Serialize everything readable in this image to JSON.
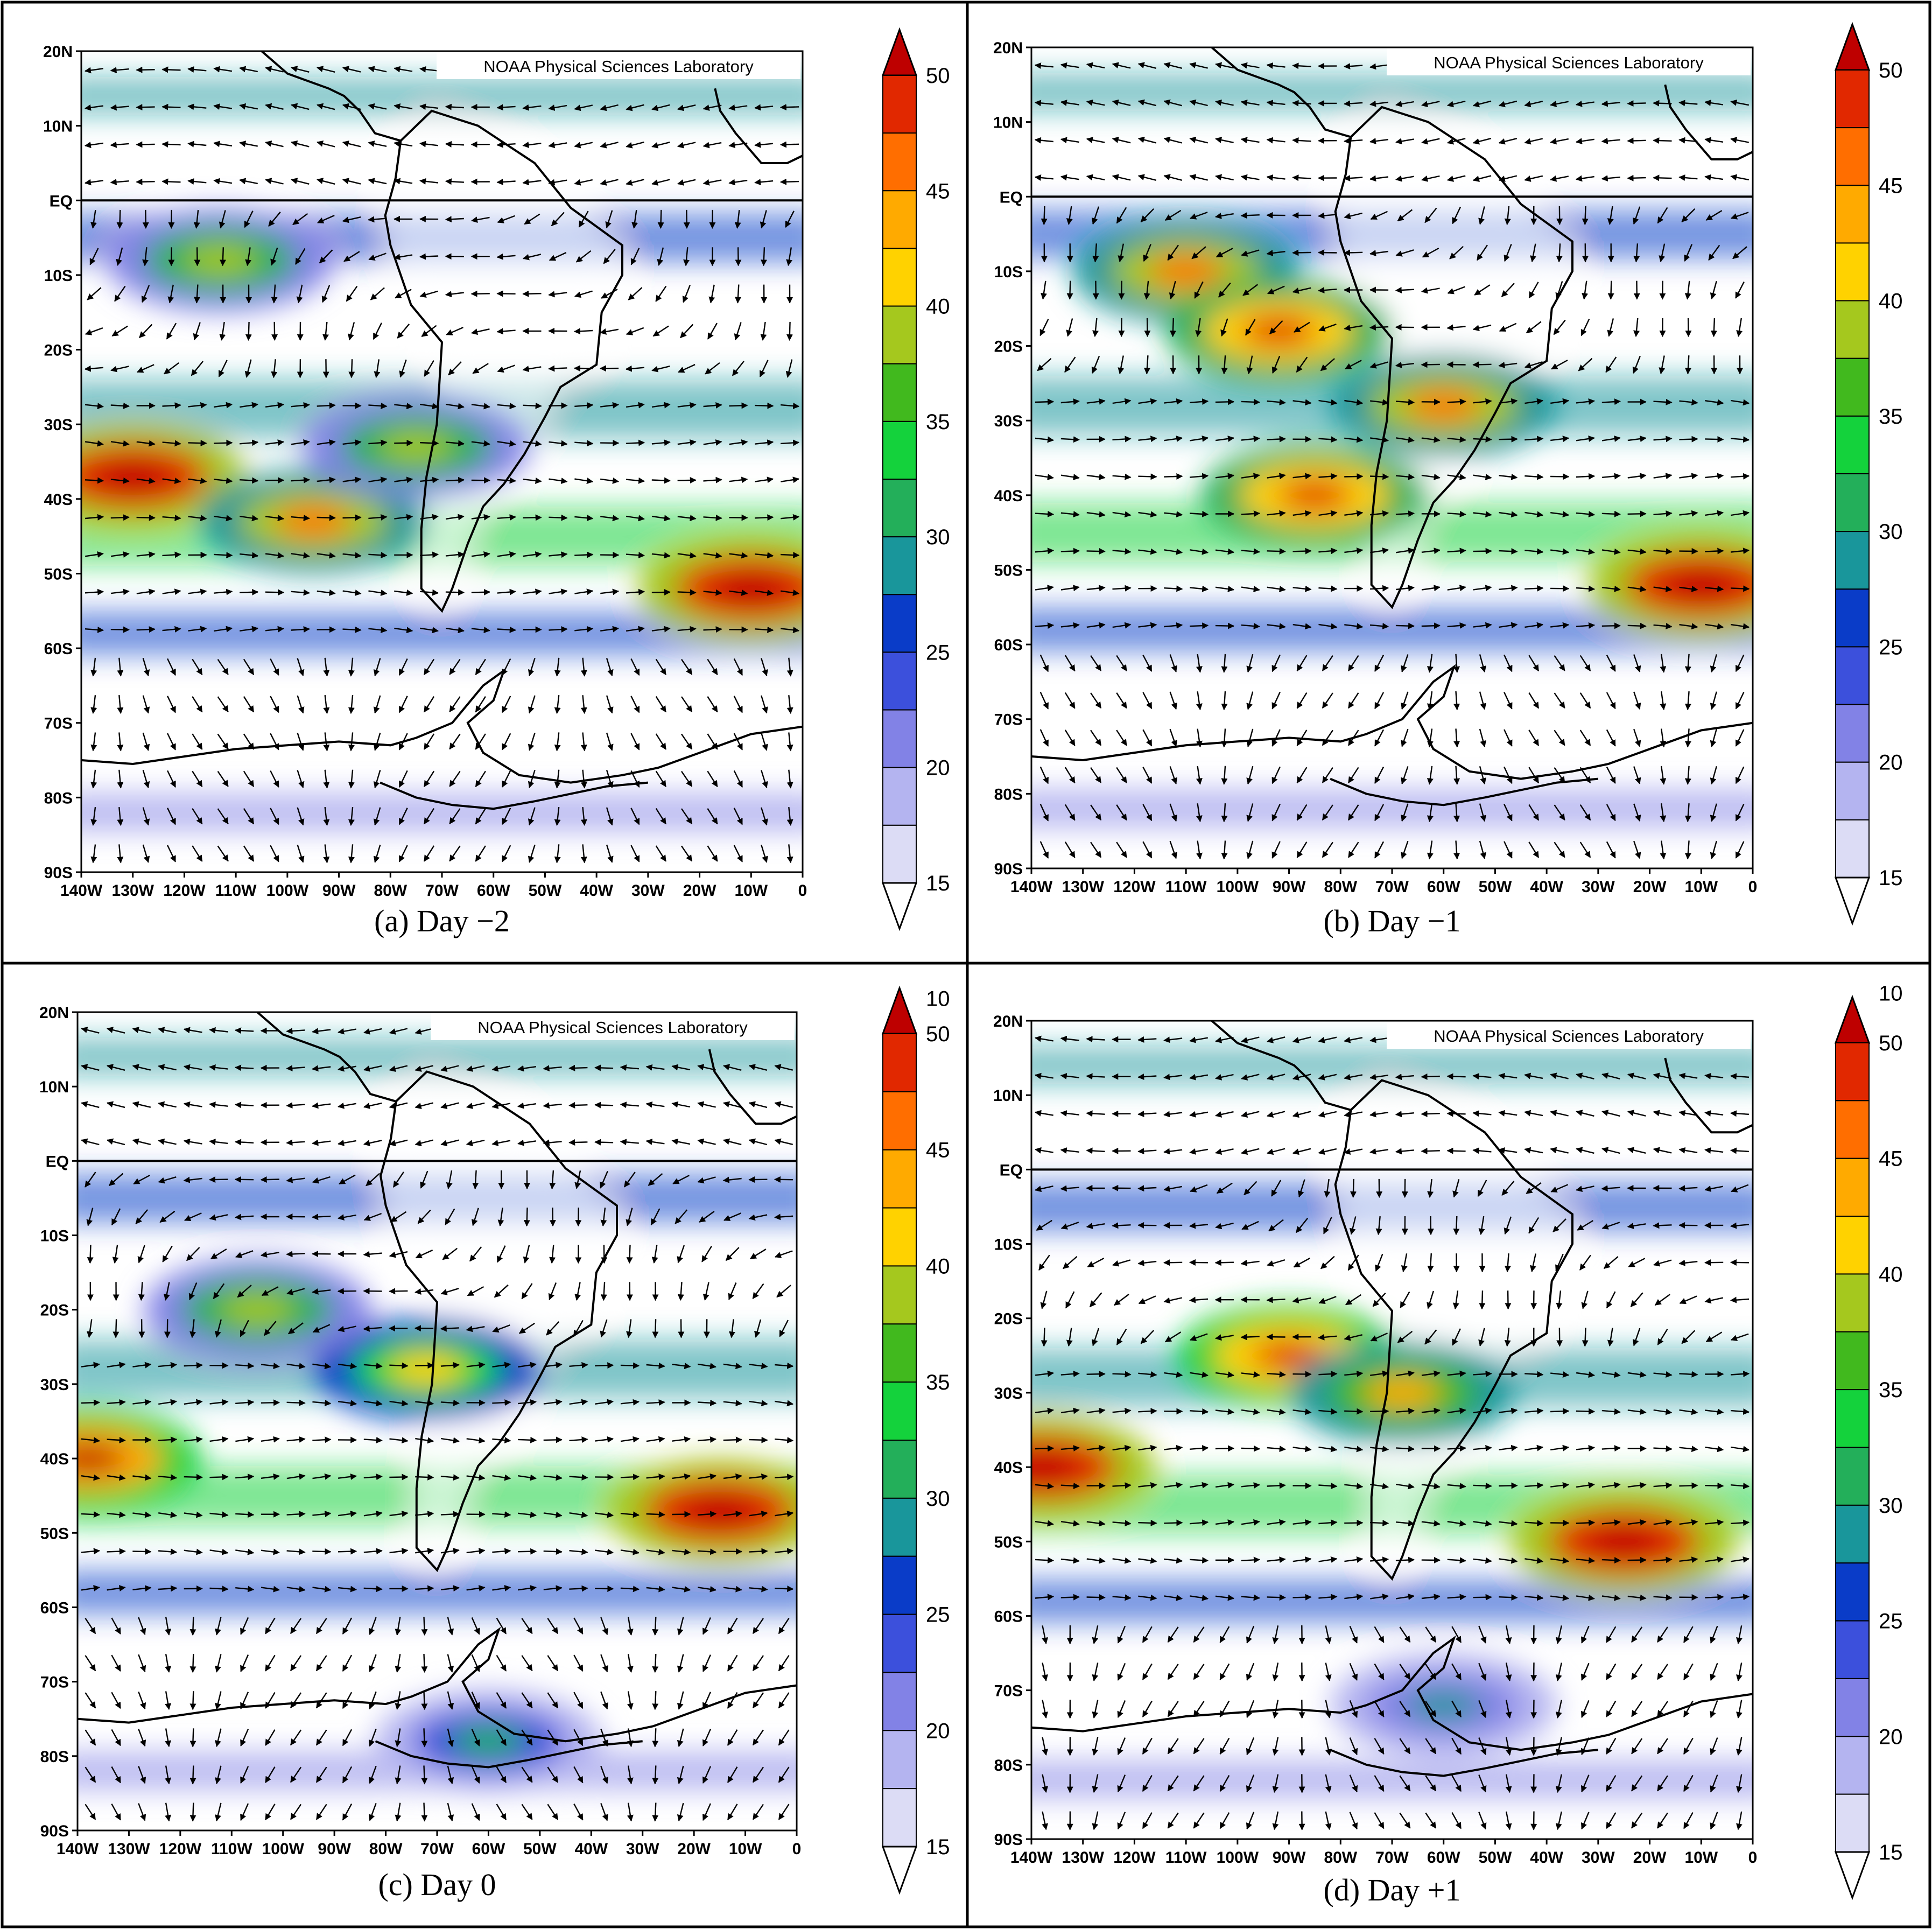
{
  "credit": "NOAA Physical Sciences Laboratory",
  "lat_labels": [
    "20N",
    "10N",
    "EQ",
    "10S",
    "20S",
    "30S",
    "40S",
    "50S",
    "60S",
    "70S",
    "80S",
    "90S"
  ],
  "lon_labels": [
    "140W",
    "130W",
    "120W",
    "110W",
    "100W",
    "90W",
    "80W",
    "70W",
    "60W",
    "50W",
    "40W",
    "30W",
    "20W",
    "10W",
    "0"
  ],
  "colorbar": {
    "labels": [
      "50",
      "45",
      "40",
      "35",
      "30",
      "25",
      "20",
      "15",
      "10"
    ],
    "colors": [
      "#ffffff",
      "#dcdcf5",
      "#b4b4f0",
      "#8282e6",
      "#3c50dc",
      "#0a3cc8",
      "#19969b",
      "#23af5a",
      "#14d23c",
      "#41b91e",
      "#a5c81e",
      "#ffd200",
      "#ffaa00",
      "#ff6e00",
      "#e12800",
      "#be0000"
    ]
  },
  "panels": [
    {
      "caption": "(a) Day −2"
    },
    {
      "caption": "(b) Day −1"
    },
    {
      "caption": "(c) Day 0"
    },
    {
      "caption": "(d) Day +1"
    }
  ],
  "chart_data": [
    {
      "type": "heatmap",
      "title": "(a) Day −2",
      "xlim": [
        "140W",
        "0"
      ],
      "ylim": [
        "90S",
        "20N"
      ],
      "colorbar_range": [
        10,
        50
      ],
      "features": [
        {
          "lat": 37,
          "lon": -130,
          "value": 50
        },
        {
          "lat": 52,
          "lon": -10,
          "value": 50
        },
        {
          "lat": 43,
          "lon": -95,
          "value": 40
        },
        {
          "lat": 33,
          "lon": -75,
          "value": 32
        },
        {
          "lat": 8,
          "lon": -113,
          "value": 32
        }
      ]
    },
    {
      "type": "heatmap",
      "title": "(b) Day −1",
      "xlim": [
        "140W",
        "0"
      ],
      "ylim": [
        "90S",
        "20N"
      ],
      "colorbar_range": [
        10,
        50
      ],
      "features": [
        {
          "lat": 52,
          "lon": -10,
          "value": 50
        },
        {
          "lat": 40,
          "lon": -85,
          "value": 42
        },
        {
          "lat": 10,
          "lon": -110,
          "value": 40
        },
        {
          "lat": 28,
          "lon": -60,
          "value": 40
        },
        {
          "lat": 18,
          "lon": -92,
          "value": 42
        }
      ]
    },
    {
      "type": "heatmap",
      "title": "(c) Day 0",
      "xlim": [
        "140W",
        "0"
      ],
      "ylim": [
        "90S",
        "20N"
      ],
      "colorbar_range": [
        10,
        50
      ],
      "features": [
        {
          "lat": 47,
          "lon": -15,
          "value": 50
        },
        {
          "lat": 28,
          "lon": -72,
          "value": 35
        },
        {
          "lat": 40,
          "lon": -138,
          "value": 44
        },
        {
          "lat": 20,
          "lon": -105,
          "value": 32
        },
        {
          "lat": 78,
          "lon": -60,
          "value": 24
        }
      ]
    },
    {
      "type": "heatmap",
      "title": "(d) Day +1",
      "xlim": [
        "140W",
        "0"
      ],
      "ylim": [
        "90S",
        "20N"
      ],
      "colorbar_range": [
        10,
        50
      ],
      "features": [
        {
          "lat": 50,
          "lon": -25,
          "value": 50
        },
        {
          "lat": 40,
          "lon": -138,
          "value": 50
        },
        {
          "lat": 25,
          "lon": -90,
          "value": 43
        },
        {
          "lat": 30,
          "lon": -68,
          "value": 38
        },
        {
          "lat": 72,
          "lon": -60,
          "value": 20
        }
      ]
    }
  ]
}
